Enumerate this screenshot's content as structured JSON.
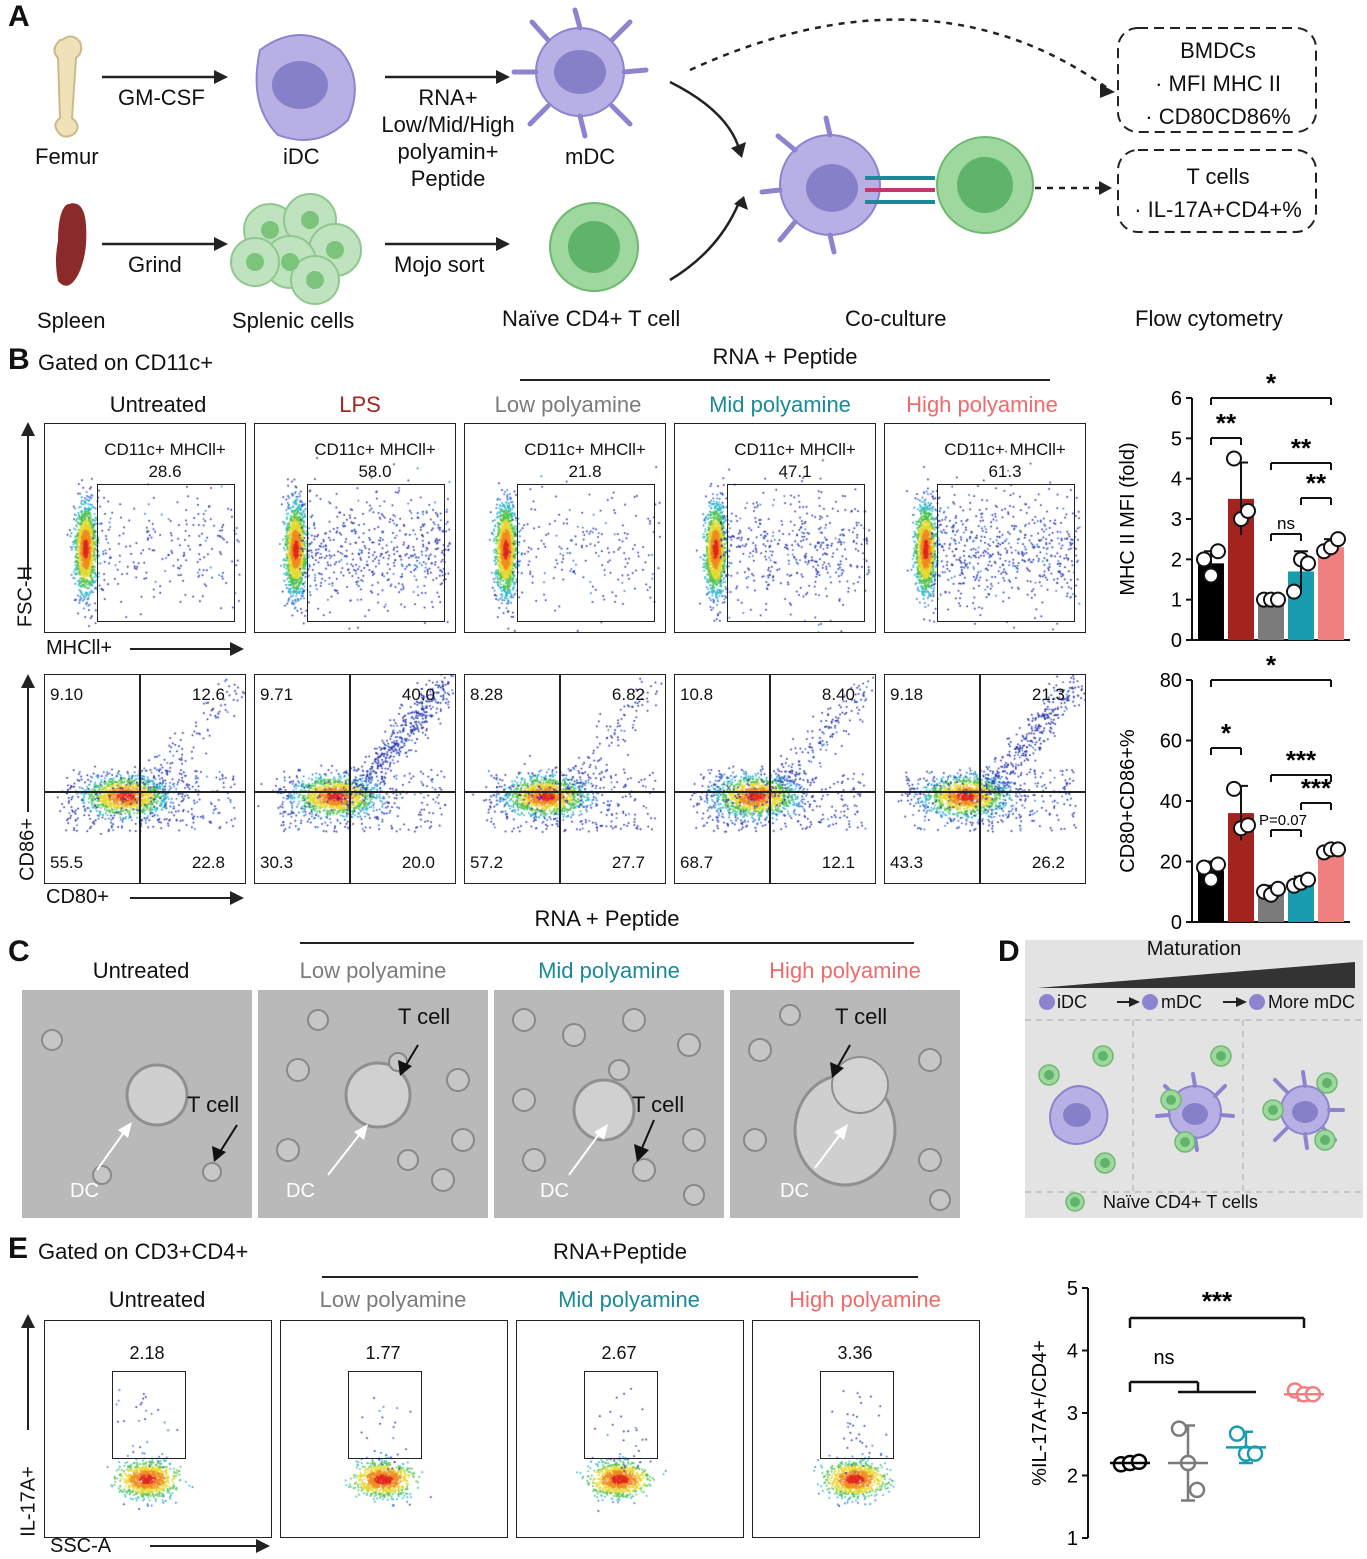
{
  "panel_labels": {
    "a": "A",
    "b": "B",
    "c": "C",
    "d": "D",
    "e": "E"
  },
  "panel_a": {
    "femur": "Femur",
    "gmcsf": "GM-CSF",
    "idc": "iDC",
    "rna_line1": "RNA+",
    "rna_line2": "Low/Mid/High",
    "rna_line3": "polyamin+",
    "rna_line4": "Peptide",
    "mdc": "mDC",
    "spleen": "Spleen",
    "grind": "Grind",
    "splenic": "Splenic cells",
    "mojo": "Mojo sort",
    "naive": "Naïve CD4+ T cell",
    "coculture": "Co-culture",
    "flow": "Flow cytometry",
    "box1_title": "BMDCs",
    "box1_item1": "· MFI MHC II",
    "box1_item2": "· CD80CD86%",
    "box2_title": "T cells",
    "box2_item1": "· IL-17A+CD4+%"
  },
  "panel_b": {
    "gated": "Gated on CD11c+",
    "header": "RNA + Peptide",
    "groups": [
      "Untreated",
      "LPS",
      "Low polyamine",
      "Mid polyamine",
      "High polyamine"
    ],
    "gate_label": "CD11c+ MHCll+",
    "gate_values": [
      "28.6",
      "58.0",
      "21.8",
      "47.1",
      "61.3"
    ],
    "quadrants": [
      {
        "ul": "9.10",
        "ur": "12.6",
        "ll": "55.5",
        "lr": "22.8"
      },
      {
        "ul": "9.71",
        "ur": "40.0",
        "ll": "30.3",
        "lr": "20.0"
      },
      {
        "ul": "8.28",
        "ur": "6.82",
        "ll": "57.2",
        "lr": "27.7"
      },
      {
        "ul": "10.8",
        "ur": "8.40",
        "ll": "68.7",
        "lr": "12.1"
      },
      {
        "ul": "9.18",
        "ur": "21.3",
        "ll": "43.3",
        "lr": "26.2"
      }
    ],
    "axis_fsc": "FSC-H",
    "axis_mhc": "MHCll+",
    "axis_cd86": "CD86+",
    "axis_cd80": "CD80+"
  },
  "panel_c": {
    "header": "RNA + Peptide",
    "groups": [
      "Untreated",
      "Low polyamine",
      "Mid polyamine",
      "High polyamine"
    ],
    "tcell": "T cell",
    "dc": "DC"
  },
  "panel_d": {
    "title": "Maturation",
    "s1": "iDC",
    "s2": "mDC",
    "s3": "More mDC",
    "legend": "Naïve CD4+ T cells"
  },
  "panel_e": {
    "gated": "Gated on CD3+CD4+",
    "header": "RNA+Peptide",
    "groups": [
      "Untreated",
      "Low polyamine",
      "Mid polyamine",
      "High polyamine"
    ],
    "values": [
      "2.18",
      "1.77",
      "2.67",
      "3.36"
    ],
    "axis_il": "IL-17A+",
    "axis_ssc": "SSC-A"
  },
  "colors": {
    "untreated": "#000000",
    "lps": "#a3231f",
    "low": "#7b7b7b",
    "mid": "#1a9cb0",
    "high": "#f07f7f"
  },
  "chart_data": [
    {
      "type": "bar",
      "title": "",
      "ylabel": "MHC II MFI (fold)",
      "ylim": [
        0,
        6
      ],
      "yticks": [
        0,
        1,
        2,
        3,
        4,
        5,
        6
      ],
      "categories": [
        "Untreated",
        "LPS",
        "Low polyamine",
        "Mid polyamine",
        "High polyamine"
      ],
      "values": [
        1.9,
        3.5,
        1.0,
        1.7,
        2.3
      ],
      "errors": [
        0.3,
        0.9,
        0.1,
        0.5,
        0.2
      ],
      "points": [
        [
          2.0,
          1.6,
          2.2
        ],
        [
          4.5,
          3.0,
          3.2
        ],
        [
          1.0,
          1.0,
          1.0
        ],
        [
          1.2,
          2.0,
          1.9
        ],
        [
          2.2,
          2.3,
          2.5
        ]
      ],
      "significance": [
        {
          "label": "*",
          "from": 0,
          "to": 4
        },
        {
          "label": "**",
          "from": 0,
          "to": 1
        },
        {
          "label": "**",
          "from": 2,
          "to": 4
        },
        {
          "label": "**",
          "from": 3,
          "to": 4
        },
        {
          "label": "ns",
          "from": 2,
          "to": 3
        }
      ]
    },
    {
      "type": "bar",
      "title": "",
      "ylabel": "CD80+CD86+%",
      "ylim": [
        0,
        80
      ],
      "yticks": [
        0,
        20,
        40,
        60,
        80
      ],
      "categories": [
        "Untreated",
        "LPS",
        "Low polyamine",
        "Mid polyamine",
        "High polyamine"
      ],
      "values": [
        17,
        36,
        10,
        13,
        23.5
      ],
      "errors": [
        3,
        9,
        2,
        2,
        1
      ],
      "points": [
        [
          18,
          14,
          19
        ],
        [
          44,
          31,
          32
        ],
        [
          10,
          9,
          11
        ],
        [
          12,
          13,
          14
        ],
        [
          23,
          24,
          24
        ]
      ],
      "significance": [
        {
          "label": "*",
          "from": 0,
          "to": 4
        },
        {
          "label": "*",
          "from": 0,
          "to": 1
        },
        {
          "label": "***",
          "from": 2,
          "to": 4
        },
        {
          "label": "***",
          "from": 3,
          "to": 4
        },
        {
          "label": "P=0.07",
          "from": 2,
          "to": 3
        }
      ]
    },
    {
      "type": "scatter",
      "title": "",
      "ylabel": "%IL-17A+/CD4+",
      "ylim": [
        1,
        5
      ],
      "yticks": [
        1,
        2,
        3,
        4,
        5
      ],
      "categories": [
        "Untreated",
        "Low polyamine",
        "Mid polyamine",
        "High polyamine"
      ],
      "means": [
        2.2,
        2.2,
        2.45,
        3.3
      ],
      "errors": [
        0.05,
        0.6,
        0.25,
        0.1
      ],
      "points": [
        [
          2.18,
          2.2,
          2.22
        ],
        [
          2.75,
          2.2,
          1.77
        ],
        [
          2.67,
          2.35,
          2.35
        ],
        [
          3.36,
          3.3,
          3.3
        ]
      ],
      "significance": [
        {
          "label": "***",
          "from": 0,
          "to": 3
        },
        {
          "label": "ns",
          "from": 0,
          "to": 2
        }
      ]
    }
  ]
}
